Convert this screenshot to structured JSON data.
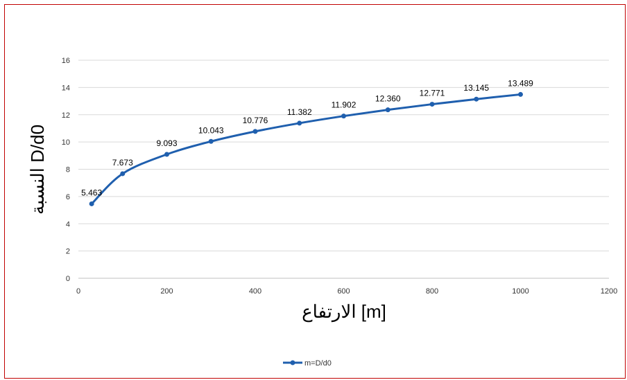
{
  "chart_data": {
    "type": "line",
    "title": "",
    "xlabel": "الارتفاع [m]",
    "ylabel": "النسبة D/d0",
    "xlim": [
      0,
      1200
    ],
    "ylim": [
      0,
      16
    ],
    "x_ticks": [
      "0",
      "200",
      "400",
      "600",
      "800",
      "1000",
      "1200"
    ],
    "y_ticks": [
      "0",
      "2",
      "4",
      "6",
      "8",
      "10",
      "12",
      "14",
      "16"
    ],
    "grid": "horizontal",
    "legend_position": "bottom",
    "series": [
      {
        "name": "m=D/d0",
        "color": "#1f5fae",
        "marker": "circle",
        "smooth": true,
        "x": [
          30,
          100,
          200,
          300,
          400,
          500,
          600,
          700,
          800,
          900,
          1000
        ],
        "y": [
          5.463,
          7.673,
          9.093,
          10.043,
          10.776,
          11.382,
          11.902,
          12.36,
          12.771,
          13.145,
          13.489
        ],
        "data_labels": [
          "5.463",
          "7.673",
          "9.093",
          "10.043",
          "10.776",
          "11.382",
          "11.902",
          "12.360",
          "12.771",
          "13.145",
          "13.489"
        ]
      }
    ]
  }
}
